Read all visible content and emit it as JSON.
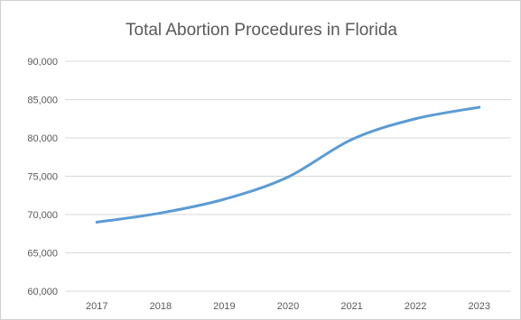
{
  "chart_data": {
    "type": "line",
    "title": "Total Abortion Procedures in Florida",
    "xlabel": "",
    "ylabel": "",
    "categories": [
      "2017",
      "2018",
      "2019",
      "2020",
      "2021",
      "2022",
      "2023"
    ],
    "series": [
      {
        "values": [
          69000,
          70200,
          72000,
          74900,
          79800,
          82500,
          84000
        ]
      }
    ],
    "ylim": [
      60000,
      90000
    ],
    "yticks": [
      60000,
      65000,
      70000,
      75000,
      80000,
      85000,
      90000
    ],
    "ytick_labels": [
      "60,000",
      "65,000",
      "70,000",
      "75,000",
      "80,000",
      "85,000",
      "90,000"
    ],
    "grid": true,
    "legend": "none",
    "line_color": "#5b9bd5",
    "grid_color": "#d9d9d9"
  }
}
